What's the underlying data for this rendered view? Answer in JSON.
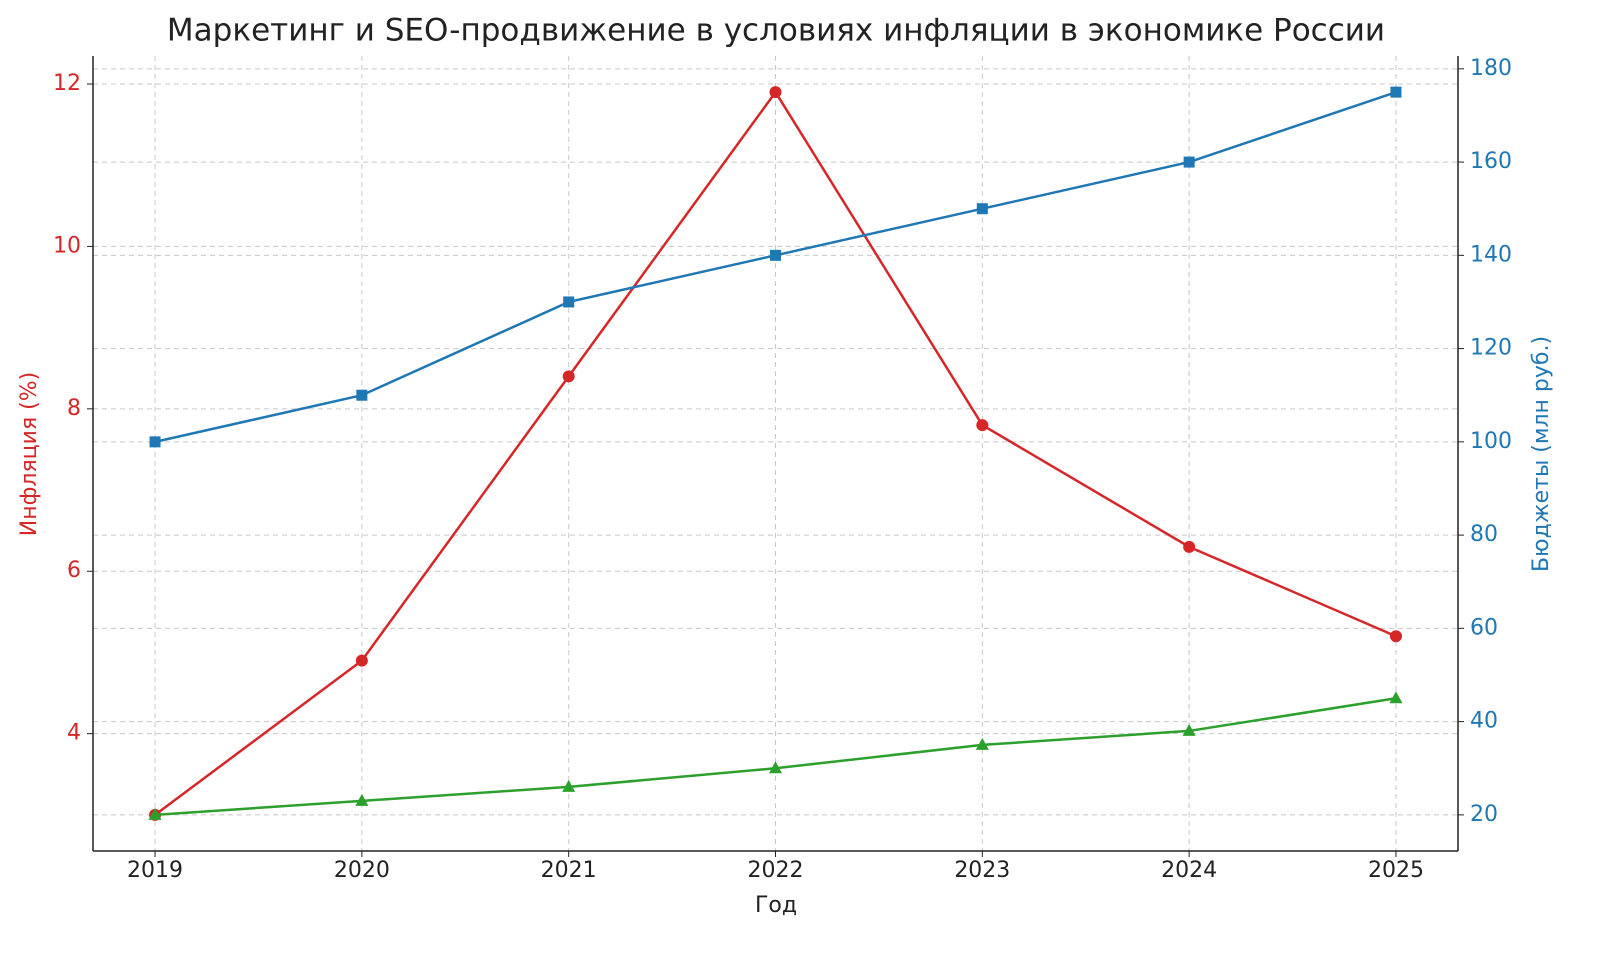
{
  "chart_data": {
    "type": "line",
    "title": "Маркетинг и SEO-продвижение в условиях инфляции в экономике России",
    "x_label": "Год",
    "y_label": "Инфляция (%)",
    "y2_label": "Бюджеты (млн руб.)",
    "y_color": "#d62728",
    "y2_color": "#1f77b4",
    "categories": [
      "2019",
      "2020",
      "2021",
      "2022",
      "2023",
      "2024",
      "2025"
    ],
    "series": [
      {
        "color": "#d62728",
        "marker": "circle",
        "values": [
          3.0,
          4.9,
          8.4,
          11.9,
          7.8,
          6.3,
          5.2
        ]
      },
      {
        "color": "#1f77b4",
        "marker": "square",
        "axis": "y2",
        "values": [
          100,
          110,
          130,
          140,
          150,
          160,
          175
        ]
      },
      {
        "color": "#2ca02c",
        "marker": "triangle",
        "axis": "y2",
        "values": [
          20,
          23,
          26,
          30,
          35,
          38,
          45
        ]
      }
    ],
    "ylim": [
      2.555,
      12.345
    ],
    "yticks": [
      4,
      6,
      8,
      10,
      12
    ],
    "y2lim": [
      12.25,
      182.75
    ],
    "y2ticks": [
      20,
      40,
      60,
      80,
      100,
      120,
      140,
      160,
      180
    ],
    "grid": true
  }
}
